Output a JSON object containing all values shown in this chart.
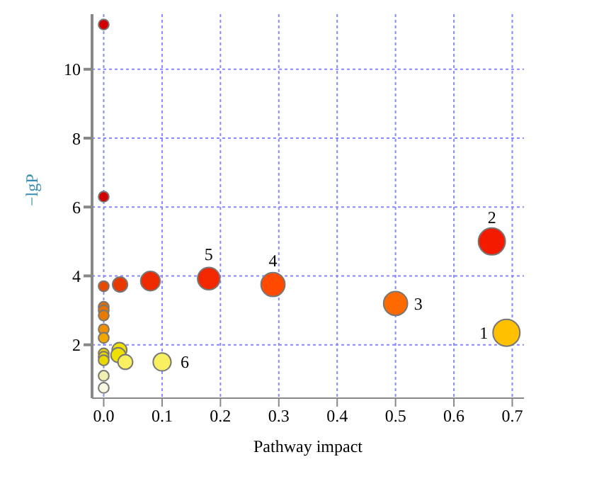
{
  "chart_data": {
    "type": "bubble",
    "xlabel": "Pathway impact",
    "ylabel": "−lgP",
    "x": [
      0,
      0,
      0,
      0,
      0,
      0,
      0,
      0,
      0,
      0,
      0,
      0,
      0,
      0.028,
      0.08,
      0.18,
      0.29,
      0.5,
      0.665,
      0.69,
      0.027,
      0.025,
      0.037,
      0.1
    ],
    "values": [
      11.3,
      6.3,
      3.7,
      3.1,
      3.0,
      2.85,
      2.45,
      2.2,
      1.75,
      1.65,
      1.55,
      1.1,
      0.75,
      3.75,
      3.85,
      3.92,
      3.75,
      3.2,
      5.0,
      2.35,
      1.85,
      1.7,
      1.5,
      1.5
    ],
    "sizes": [
      0.15,
      0.15,
      0.15,
      0.15,
      0.15,
      0.15,
      0.15,
      0.15,
      0.15,
      0.15,
      0.15,
      0.15,
      0.15,
      0.31,
      0.52,
      0.69,
      0.79,
      0.79,
      1,
      1,
      0.3,
      0.3,
      0.3,
      0.44
    ],
    "colors": [
      "#d40000",
      "#d40000",
      "#e84a00",
      "#e86a00",
      "#e87000",
      "#e87a00",
      "#f09000",
      "#f0a800",
      "#e8d000",
      "#e8d400",
      "#e8d800",
      "#f0f0b0",
      "#f8f8e0",
      "#e83a00",
      "#ee2a00",
      "#f42800",
      "#ff4a00",
      "#ff6a00",
      "#f41a00",
      "#ffc000",
      "#f0e000",
      "#f0e000",
      "#f8f060",
      "#f8f060"
    ],
    "xlim": [
      -0.02,
      0.72
    ],
    "ylim": [
      0.45,
      11.6
    ],
    "xticks": [
      {
        "value": 0,
        "label": "0.0"
      },
      0.1,
      0.2,
      0.3,
      0.4,
      0.5,
      0.6,
      0.7
    ],
    "yticks": [
      2,
      4,
      6,
      8,
      10
    ],
    "grid": true,
    "annotations": [
      {
        "text": "1",
        "x": 0.69,
        "y": 2.35
      },
      {
        "text": "2",
        "x": 0.665,
        "y": 5.0
      },
      {
        "text": "3",
        "x": 0.5,
        "y": 3.2
      },
      {
        "text": "4",
        "x": 0.29,
        "y": 3.75
      },
      {
        "text": "5",
        "x": 0.18,
        "y": 3.92
      },
      {
        "text": "6",
        "x": 0.1,
        "y": 1.5
      }
    ]
  }
}
